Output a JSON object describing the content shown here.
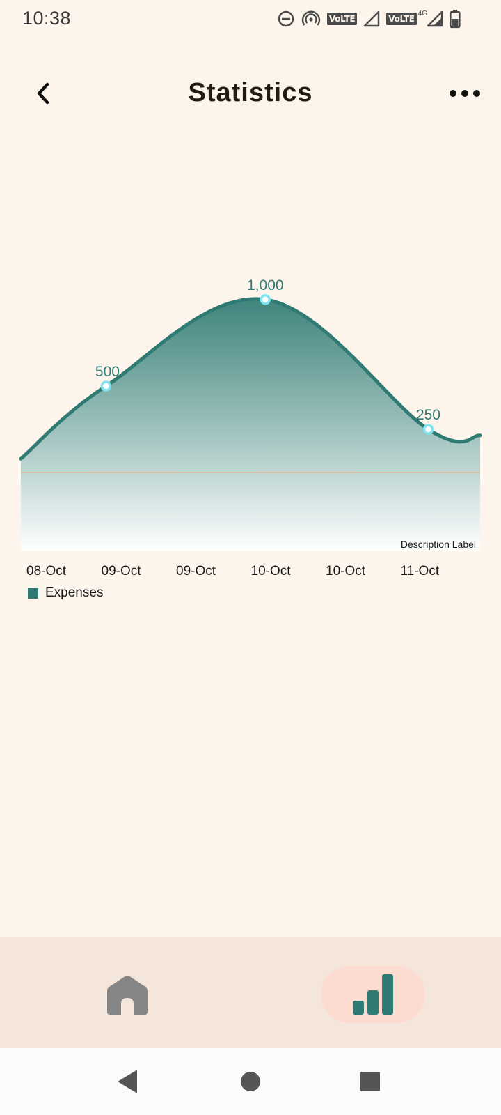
{
  "status_bar": {
    "time": "10:38",
    "icons": [
      "dnd-icon",
      "hotspot-icon",
      "volte-icon",
      "signal-icon",
      "volte-icon",
      "network-4g-icon",
      "battery-icon"
    ],
    "volte_text": "VoLTE",
    "network_type": "4G"
  },
  "header": {
    "title": "Statistics",
    "back_icon": "chevron-left-icon",
    "more_icon": "more-horizontal-icon"
  },
  "chart_data": {
    "type": "area",
    "categories": [
      "08-Oct",
      "09-Oct",
      "09-Oct",
      "10-Oct",
      "10-Oct",
      "11-Oct"
    ],
    "series": [
      {
        "name": "Expenses",
        "color": "#2f7b73",
        "points": [
          {
            "x": 0,
            "y": 80
          },
          {
            "x": 1.15,
            "y": 500,
            "label": "500"
          },
          {
            "x": 3.3,
            "y": 1000,
            "label": "1,000"
          },
          {
            "x": 5.5,
            "y": 250,
            "label": "250"
          },
          {
            "x": 6.2,
            "y": 215
          }
        ]
      }
    ],
    "xlim": [
      0,
      6.2
    ],
    "ylim": [
      -450,
      1120
    ],
    "limit_line": 0,
    "legend": "bottom-left",
    "description": "Description Label",
    "grid": false
  },
  "bottom_nav": {
    "items": [
      {
        "name": "home",
        "icon": "home-icon",
        "active": false
      },
      {
        "name": "statistics",
        "icon": "bar-chart-icon",
        "active": true
      }
    ],
    "accent": "#2f7b73",
    "inactive_color": "#858585"
  },
  "system_nav": {
    "back": "back-icon",
    "home": "home-circle-icon",
    "recents": "recents-icon"
  }
}
